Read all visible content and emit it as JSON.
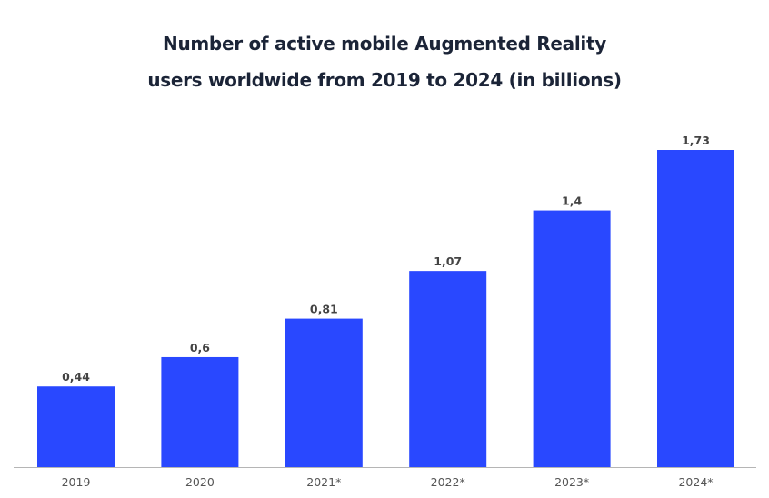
{
  "chart_data": {
    "type": "bar",
    "title_lines": [
      "Number of active mobile Augmented Reality",
      "users worldwide from 2019 to 2024 (in billions)"
    ],
    "categories": [
      "2019",
      "2020",
      "2021*",
      "2022*",
      "2023*",
      "2024*"
    ],
    "values": [
      0.44,
      0.6,
      0.81,
      1.07,
      1.4,
      1.73
    ],
    "data_labels": [
      "0,44",
      "0,6",
      "0,81",
      "1,07",
      "1,4",
      "1,73"
    ],
    "xlabel": "",
    "ylabel": "",
    "ylim": [
      0,
      1.73
    ],
    "grid": false,
    "legend": "none",
    "bar_color": "#2948ff"
  }
}
